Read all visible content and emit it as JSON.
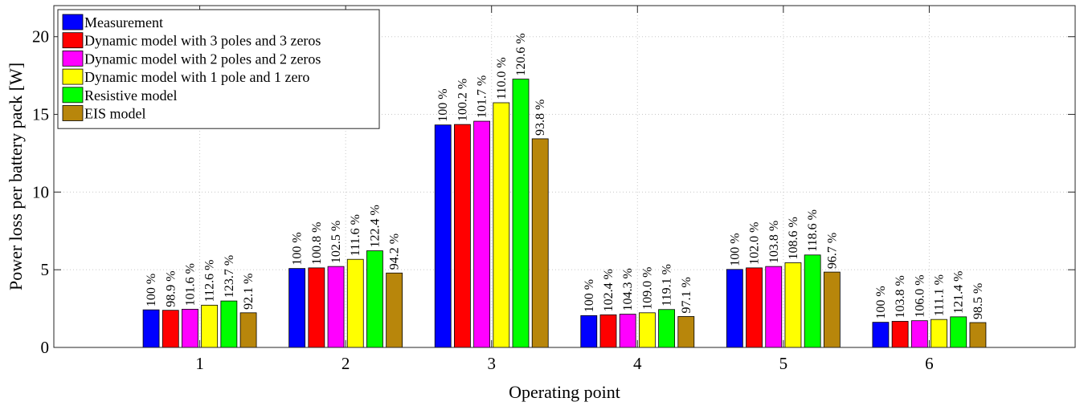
{
  "chart_data": {
    "type": "bar",
    "xlabel": "Operating point",
    "ylabel": "Power loss per battery pack [W]",
    "ylim": [
      0,
      22
    ],
    "yticks": [
      0,
      5,
      10,
      15,
      20
    ],
    "xlim": [
      0,
      7
    ],
    "categories": [
      "1",
      "2",
      "3",
      "4",
      "5",
      "6"
    ],
    "grid": "dotted",
    "legend_position": "top-left",
    "series": [
      {
        "name": "Measurement",
        "color": "#0000ff",
        "values": [
          2.42,
          5.08,
          14.32,
          2.05,
          5.02,
          1.62
        ],
        "labels": [
          "100 %",
          "100 %",
          "100 %",
          "100 %",
          "100 %",
          "100 %"
        ]
      },
      {
        "name": "Dynamic model with 3 poles and 3 zeros",
        "color": "#ff0000",
        "values": [
          2.39,
          5.12,
          14.35,
          2.1,
          5.12,
          1.68
        ],
        "labels": [
          "98.9 %",
          "100.8 %",
          "100.2 %",
          "102.4 %",
          "102.0 %",
          "103.8 %"
        ]
      },
      {
        "name": "Dynamic model with 2 poles and 2 zeros",
        "color": "#ff00ff",
        "values": [
          2.46,
          5.21,
          14.56,
          2.14,
          5.21,
          1.72
        ],
        "labels": [
          "101.6 %",
          "102.5 %",
          "101.7 %",
          "104.3 %",
          "103.8 %",
          "106.0 %"
        ]
      },
      {
        "name": "Dynamic model with 1 pole and 1 zero",
        "color": "#ffff00",
        "values": [
          2.72,
          5.67,
          15.75,
          2.23,
          5.45,
          1.8
        ],
        "labels": [
          "112.6 %",
          "111.6 %",
          "110.0 %",
          "109.0 %",
          "108.6 %",
          "111.1 %"
        ]
      },
      {
        "name": "Resistive model",
        "color": "#00ff00",
        "values": [
          2.99,
          6.22,
          17.27,
          2.44,
          5.95,
          1.97
        ],
        "labels": [
          "123.7 %",
          "122.4 %",
          "120.6 %",
          "119.1 %",
          "118.6 %",
          "121.4 %"
        ]
      },
      {
        "name": "EIS model",
        "color": "#b8860b",
        "values": [
          2.23,
          4.79,
          13.43,
          1.99,
          4.85,
          1.6
        ],
        "labels": [
          "92.1 %",
          "94.2 %",
          "93.8 %",
          "97.1 %",
          "96.7 %",
          "98.5 %"
        ]
      }
    ]
  }
}
